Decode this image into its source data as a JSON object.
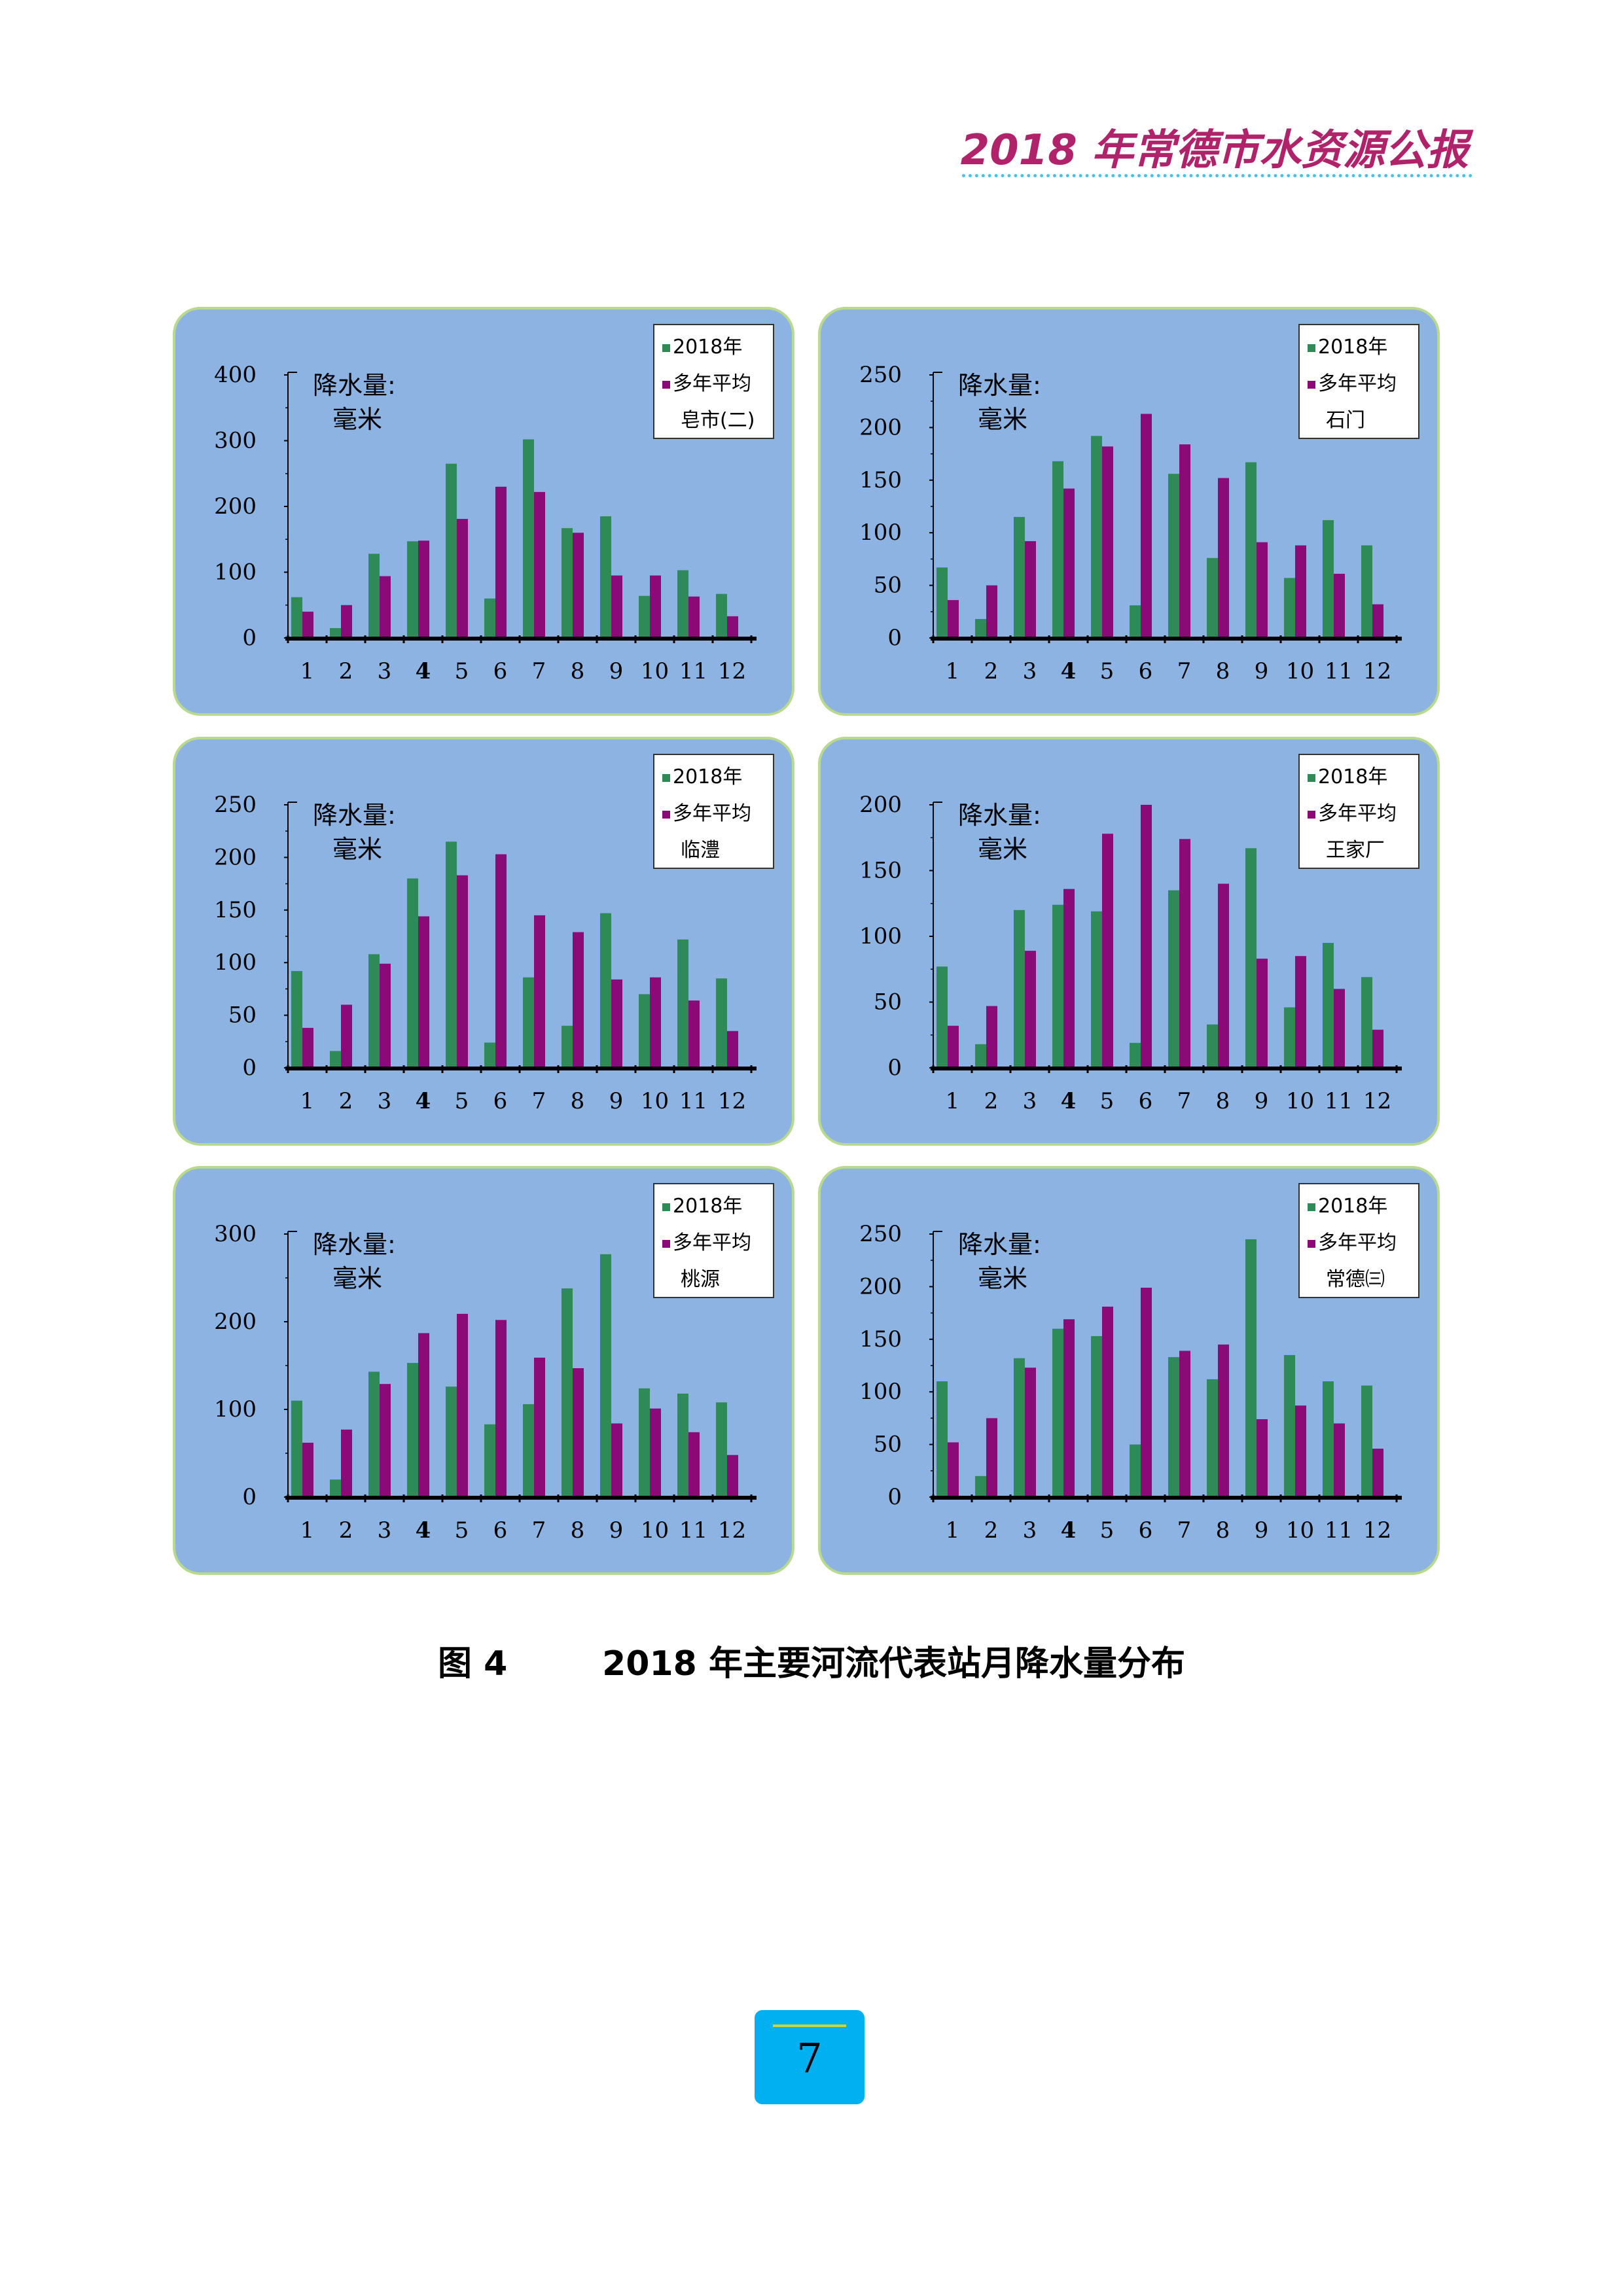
{
  "header": {
    "title": "2018 年常德市水资源公报"
  },
  "figure": {
    "caption": "图 4        2018 年主要河流代表站月降水量分布"
  },
  "page": {
    "number": "7"
  },
  "colors": {
    "panel_bg": "#8db3e2",
    "panel_border": "#b9d98c",
    "series_2018": "#2e8b57",
    "series_avg": "#8b0a78",
    "page_box": "#00b0f0",
    "header_text": "#b0226a"
  },
  "chart_data": [
    {
      "type": "bar",
      "station": "皂市(二)",
      "ylabel": [
        "降水量:",
        "毫米"
      ],
      "ylim": [
        0,
        400
      ],
      "yticks": [
        0,
        100,
        200,
        300,
        400
      ],
      "categories": [
        "1",
        "2",
        "3",
        "4",
        "5",
        "6",
        "7",
        "8",
        "9",
        "10",
        "11",
        "12"
      ],
      "series": [
        {
          "name": "2018年",
          "values": [
            62,
            15,
            128,
            147,
            265,
            60,
            302,
            167,
            185,
            64,
            103,
            67
          ]
        },
        {
          "name": "多年平均",
          "values": [
            40,
            50,
            94,
            148,
            181,
            230,
            222,
            160,
            95,
            95,
            63,
            33
          ]
        }
      ],
      "legend_position": "top-right"
    },
    {
      "type": "bar",
      "station": "石门",
      "ylabel": [
        "降水量:",
        "毫米"
      ],
      "ylim": [
        0,
        250
      ],
      "yticks": [
        0,
        50,
        100,
        150,
        200,
        250
      ],
      "categories": [
        "1",
        "2",
        "3",
        "4",
        "5",
        "6",
        "7",
        "8",
        "9",
        "10",
        "11",
        "12"
      ],
      "series": [
        {
          "name": "2018年",
          "values": [
            67,
            18,
            115,
            168,
            192,
            31,
            156,
            76,
            167,
            57,
            112,
            88
          ]
        },
        {
          "name": "多年平均",
          "values": [
            36,
            50,
            92,
            142,
            182,
            213,
            184,
            152,
            91,
            88,
            61,
            32
          ]
        }
      ],
      "legend_position": "top-right"
    },
    {
      "type": "bar",
      "station": "临澧",
      "ylabel": [
        "降水量:",
        "毫米"
      ],
      "ylim": [
        0,
        250
      ],
      "yticks": [
        0,
        50,
        100,
        150,
        200,
        250
      ],
      "categories": [
        "1",
        "2",
        "3",
        "4",
        "5",
        "6",
        "7",
        "8",
        "9",
        "10",
        "11",
        "12"
      ],
      "series": [
        {
          "name": "2018年",
          "values": [
            92,
            16,
            108,
            180,
            215,
            24,
            86,
            40,
            147,
            70,
            122,
            85
          ]
        },
        {
          "name": "多年平均",
          "values": [
            38,
            60,
            99,
            144,
            183,
            203,
            145,
            129,
            84,
            86,
            64,
            35
          ]
        }
      ],
      "legend_position": "top-right"
    },
    {
      "type": "bar",
      "station": "王家厂",
      "ylabel": [
        "降水量:",
        "毫米"
      ],
      "ylim": [
        0,
        200
      ],
      "yticks": [
        0,
        50,
        100,
        150,
        200
      ],
      "categories": [
        "1",
        "2",
        "3",
        "4",
        "5",
        "6",
        "7",
        "8",
        "9",
        "10",
        "11",
        "12"
      ],
      "series": [
        {
          "name": "2018年",
          "values": [
            77,
            18,
            120,
            124,
            119,
            19,
            135,
            33,
            167,
            46,
            95,
            69
          ]
        },
        {
          "name": "多年平均",
          "values": [
            32,
            47,
            89,
            136,
            178,
            200,
            174,
            140,
            83,
            85,
            60,
            29
          ]
        }
      ],
      "legend_position": "top-right"
    },
    {
      "type": "bar",
      "station": "桃源",
      "ylabel": [
        "降水量:",
        "毫米"
      ],
      "ylim": [
        0,
        300
      ],
      "yticks": [
        0,
        100,
        200,
        300
      ],
      "categories": [
        "1",
        "2",
        "3",
        "4",
        "5",
        "6",
        "7",
        "8",
        "9",
        "10",
        "11",
        "12"
      ],
      "series": [
        {
          "name": "2018年",
          "values": [
            110,
            20,
            143,
            153,
            126,
            83,
            106,
            238,
            277,
            124,
            118,
            108
          ]
        },
        {
          "name": "多年平均",
          "values": [
            62,
            77,
            129,
            187,
            209,
            202,
            159,
            147,
            84,
            101,
            74,
            48
          ]
        }
      ],
      "legend_position": "top-right"
    },
    {
      "type": "bar",
      "station": "常德㈢",
      "ylabel": [
        "降水量:",
        "毫米"
      ],
      "ylim": [
        0,
        250
      ],
      "yticks": [
        0,
        50,
        100,
        150,
        200,
        250
      ],
      "categories": [
        "1",
        "2",
        "3",
        "4",
        "5",
        "6",
        "7",
        "8",
        "9",
        "10",
        "11",
        "12"
      ],
      "series": [
        {
          "name": "2018年",
          "values": [
            110,
            20,
            132,
            160,
            153,
            50,
            133,
            112,
            245,
            135,
            110,
            106
          ]
        },
        {
          "name": "多年平均",
          "values": [
            52,
            75,
            123,
            169,
            181,
            199,
            139,
            145,
            74,
            87,
            70,
            46
          ]
        }
      ],
      "legend_position": "top-right"
    }
  ]
}
